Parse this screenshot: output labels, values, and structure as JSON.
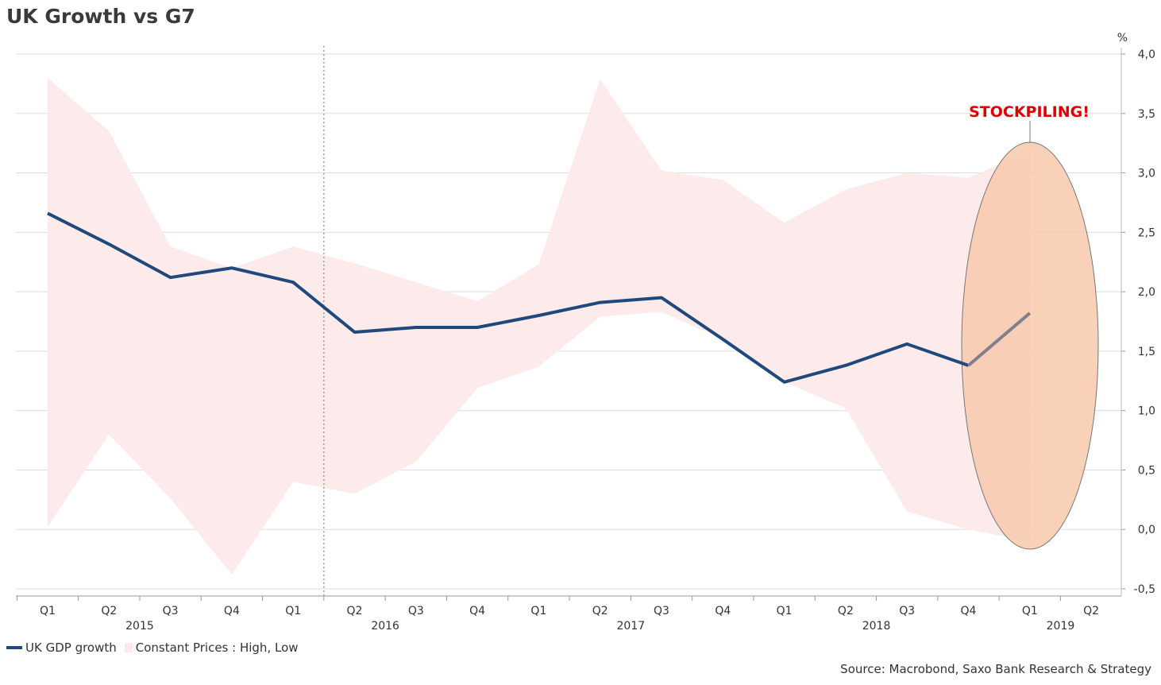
{
  "title": "UK Growth vs G7",
  "source": "Source: Macrobond, Saxo Bank Research & Strategy",
  "annotation": "STOCKPILING!",
  "colors": {
    "line": "#1f497d",
    "line_projection": "#7f7f8f",
    "band": "#fdeaea",
    "ellipse_fill": "#f8c9ad",
    "ellipse_stroke": "#777777",
    "annotation": "#e00000",
    "grid": "#dddddd"
  },
  "chart_data": {
    "type": "line",
    "title": "UK Growth vs G7",
    "ylabel": "%",
    "ylim": [
      -0.5,
      4.0
    ],
    "yticks": [
      "-0,5",
      "0,0",
      "0,5",
      "1,0",
      "1,5",
      "2,0",
      "2,5",
      "3,0",
      "3,5",
      "4,0"
    ],
    "y_axis_position": "right",
    "grid": true,
    "legend_position": "bottom-left",
    "x_quarter_labels": [
      "Q1",
      "Q2",
      "Q3",
      "Q4",
      "Q1",
      "Q2",
      "Q3",
      "Q4",
      "Q1",
      "Q2",
      "Q3",
      "Q4",
      "Q1",
      "Q2",
      "Q3",
      "Q4",
      "Q1",
      "Q2"
    ],
    "x_year_labels": [
      "2015",
      "2016",
      "2017",
      "2018",
      "2019"
    ],
    "x_periods": [
      "2015 Q1",
      "2015 Q2",
      "2015 Q3",
      "2015 Q4",
      "2016 Q1",
      "2016 Q2",
      "2016 Q3",
      "2016 Q4",
      "2017 Q1",
      "2017 Q2",
      "2017 Q3",
      "2017 Q4",
      "2018 Q1",
      "2018 Q2",
      "2018 Q3",
      "2018 Q4",
      "2019 Q1"
    ],
    "series": [
      {
        "name": "UK GDP growth",
        "values": [
          2.66,
          2.4,
          2.12,
          2.2,
          2.08,
          1.66,
          1.7,
          1.7,
          1.8,
          1.91,
          1.95,
          1.6,
          1.24,
          1.38,
          1.56,
          1.38,
          1.82
        ],
        "projection_from_index": 15
      },
      {
        "name": "Constant Prices : High, Low",
        "type": "band",
        "high": [
          3.8,
          3.35,
          2.38,
          2.2,
          2.38,
          2.24,
          2.08,
          1.92,
          2.23,
          3.79,
          3.02,
          2.94,
          2.58,
          2.86,
          3.0,
          2.96,
          3.18
        ],
        "low": [
          0.02,
          0.8,
          0.26,
          -0.38,
          0.4,
          0.3,
          0.57,
          1.19,
          1.37,
          1.79,
          1.83,
          1.6,
          1.24,
          1.02,
          0.15,
          0.0,
          -0.1
        ]
      }
    ],
    "annotations": [
      {
        "text": "STOCKPILING!",
        "target_period": "2019 Q1"
      }
    ]
  },
  "legend": [
    {
      "label": "UK GDP growth",
      "kind": "line"
    },
    {
      "label": "Constant Prices : High, Low",
      "kind": "band"
    }
  ]
}
